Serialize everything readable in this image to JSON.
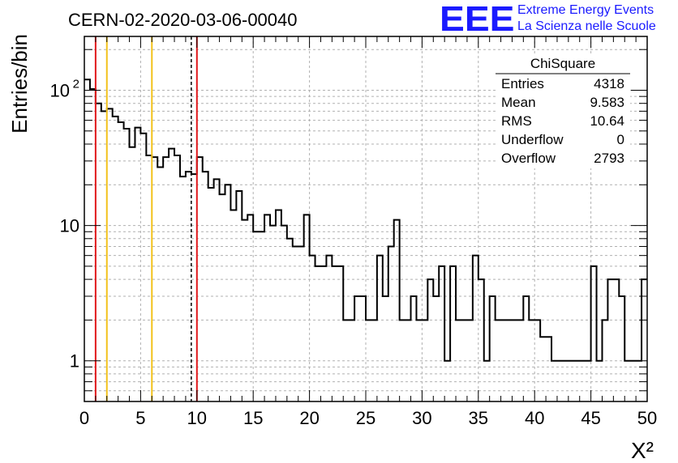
{
  "chart_data": {
    "type": "histogram",
    "title": "CERN-02-2020-03-06-00040",
    "xlabel": "X²",
    "ylabel": "Entries/bin",
    "xlim": [
      0,
      50
    ],
    "ylim_log": [
      0.5,
      250
    ],
    "log_y": true,
    "bin_width": 0.5,
    "x_ticks": [
      "0",
      "5",
      "10",
      "15",
      "20",
      "25",
      "30",
      "35",
      "40",
      "45",
      "50"
    ],
    "y_ticks": [
      {
        "value": 1,
        "label": "1"
      },
      {
        "value": 10,
        "label": "10"
      },
      {
        "value": 100,
        "label": "10",
        "exponent": "2"
      }
    ],
    "grid": true,
    "values": [
      120,
      102,
      80,
      70,
      73,
      64,
      58,
      52,
      38,
      53,
      48,
      33,
      32,
      27,
      32,
      37,
      33,
      23,
      25,
      24,
      32,
      25,
      19,
      22,
      17,
      20,
      13,
      18,
      11,
      12,
      9,
      9,
      12,
      10,
      13,
      10,
      8,
      7,
      7,
      12,
      6,
      5,
      5,
      6,
      5,
      5,
      2,
      2,
      3,
      3,
      2,
      2,
      6,
      3,
      7,
      11,
      2,
      2,
      3,
      2,
      2,
      4,
      3,
      5,
      1,
      5,
      2,
      2,
      2,
      6,
      4,
      1,
      3,
      2,
      2,
      2,
      2,
      2,
      3,
      2,
      2,
      1.5,
      1.5,
      1,
      1,
      1,
      1,
      1,
      1,
      1,
      5,
      1,
      2,
      4,
      4,
      3,
      1,
      1,
      1,
      4
    ],
    "vertical_lines": [
      {
        "x": 1,
        "color": "#e0181b",
        "style": "solid"
      },
      {
        "x": 2,
        "color": "#f2c21b",
        "style": "solid"
      },
      {
        "x": 6,
        "color": "#f2c21b",
        "style": "solid"
      },
      {
        "x": 9.5,
        "color": "#000000",
        "style": "dashed"
      },
      {
        "x": 10,
        "color": "#e0181b",
        "style": "solid"
      }
    ],
    "stats_box": {
      "title": "ChiSquare",
      "rows": [
        {
          "label": "Entries",
          "value": "4318"
        },
        {
          "label": "Mean",
          "value": "9.583"
        },
        {
          "label": "RMS",
          "value": "10.64"
        },
        {
          "label": "Underflow",
          "value": "0"
        },
        {
          "label": "Overflow",
          "value": "2793"
        }
      ]
    }
  },
  "logo": {
    "mark": "EEE",
    "line1": "Extreme Energy Events",
    "line2": "La Scienza nelle Scuole",
    "color": "#1a1aff"
  }
}
